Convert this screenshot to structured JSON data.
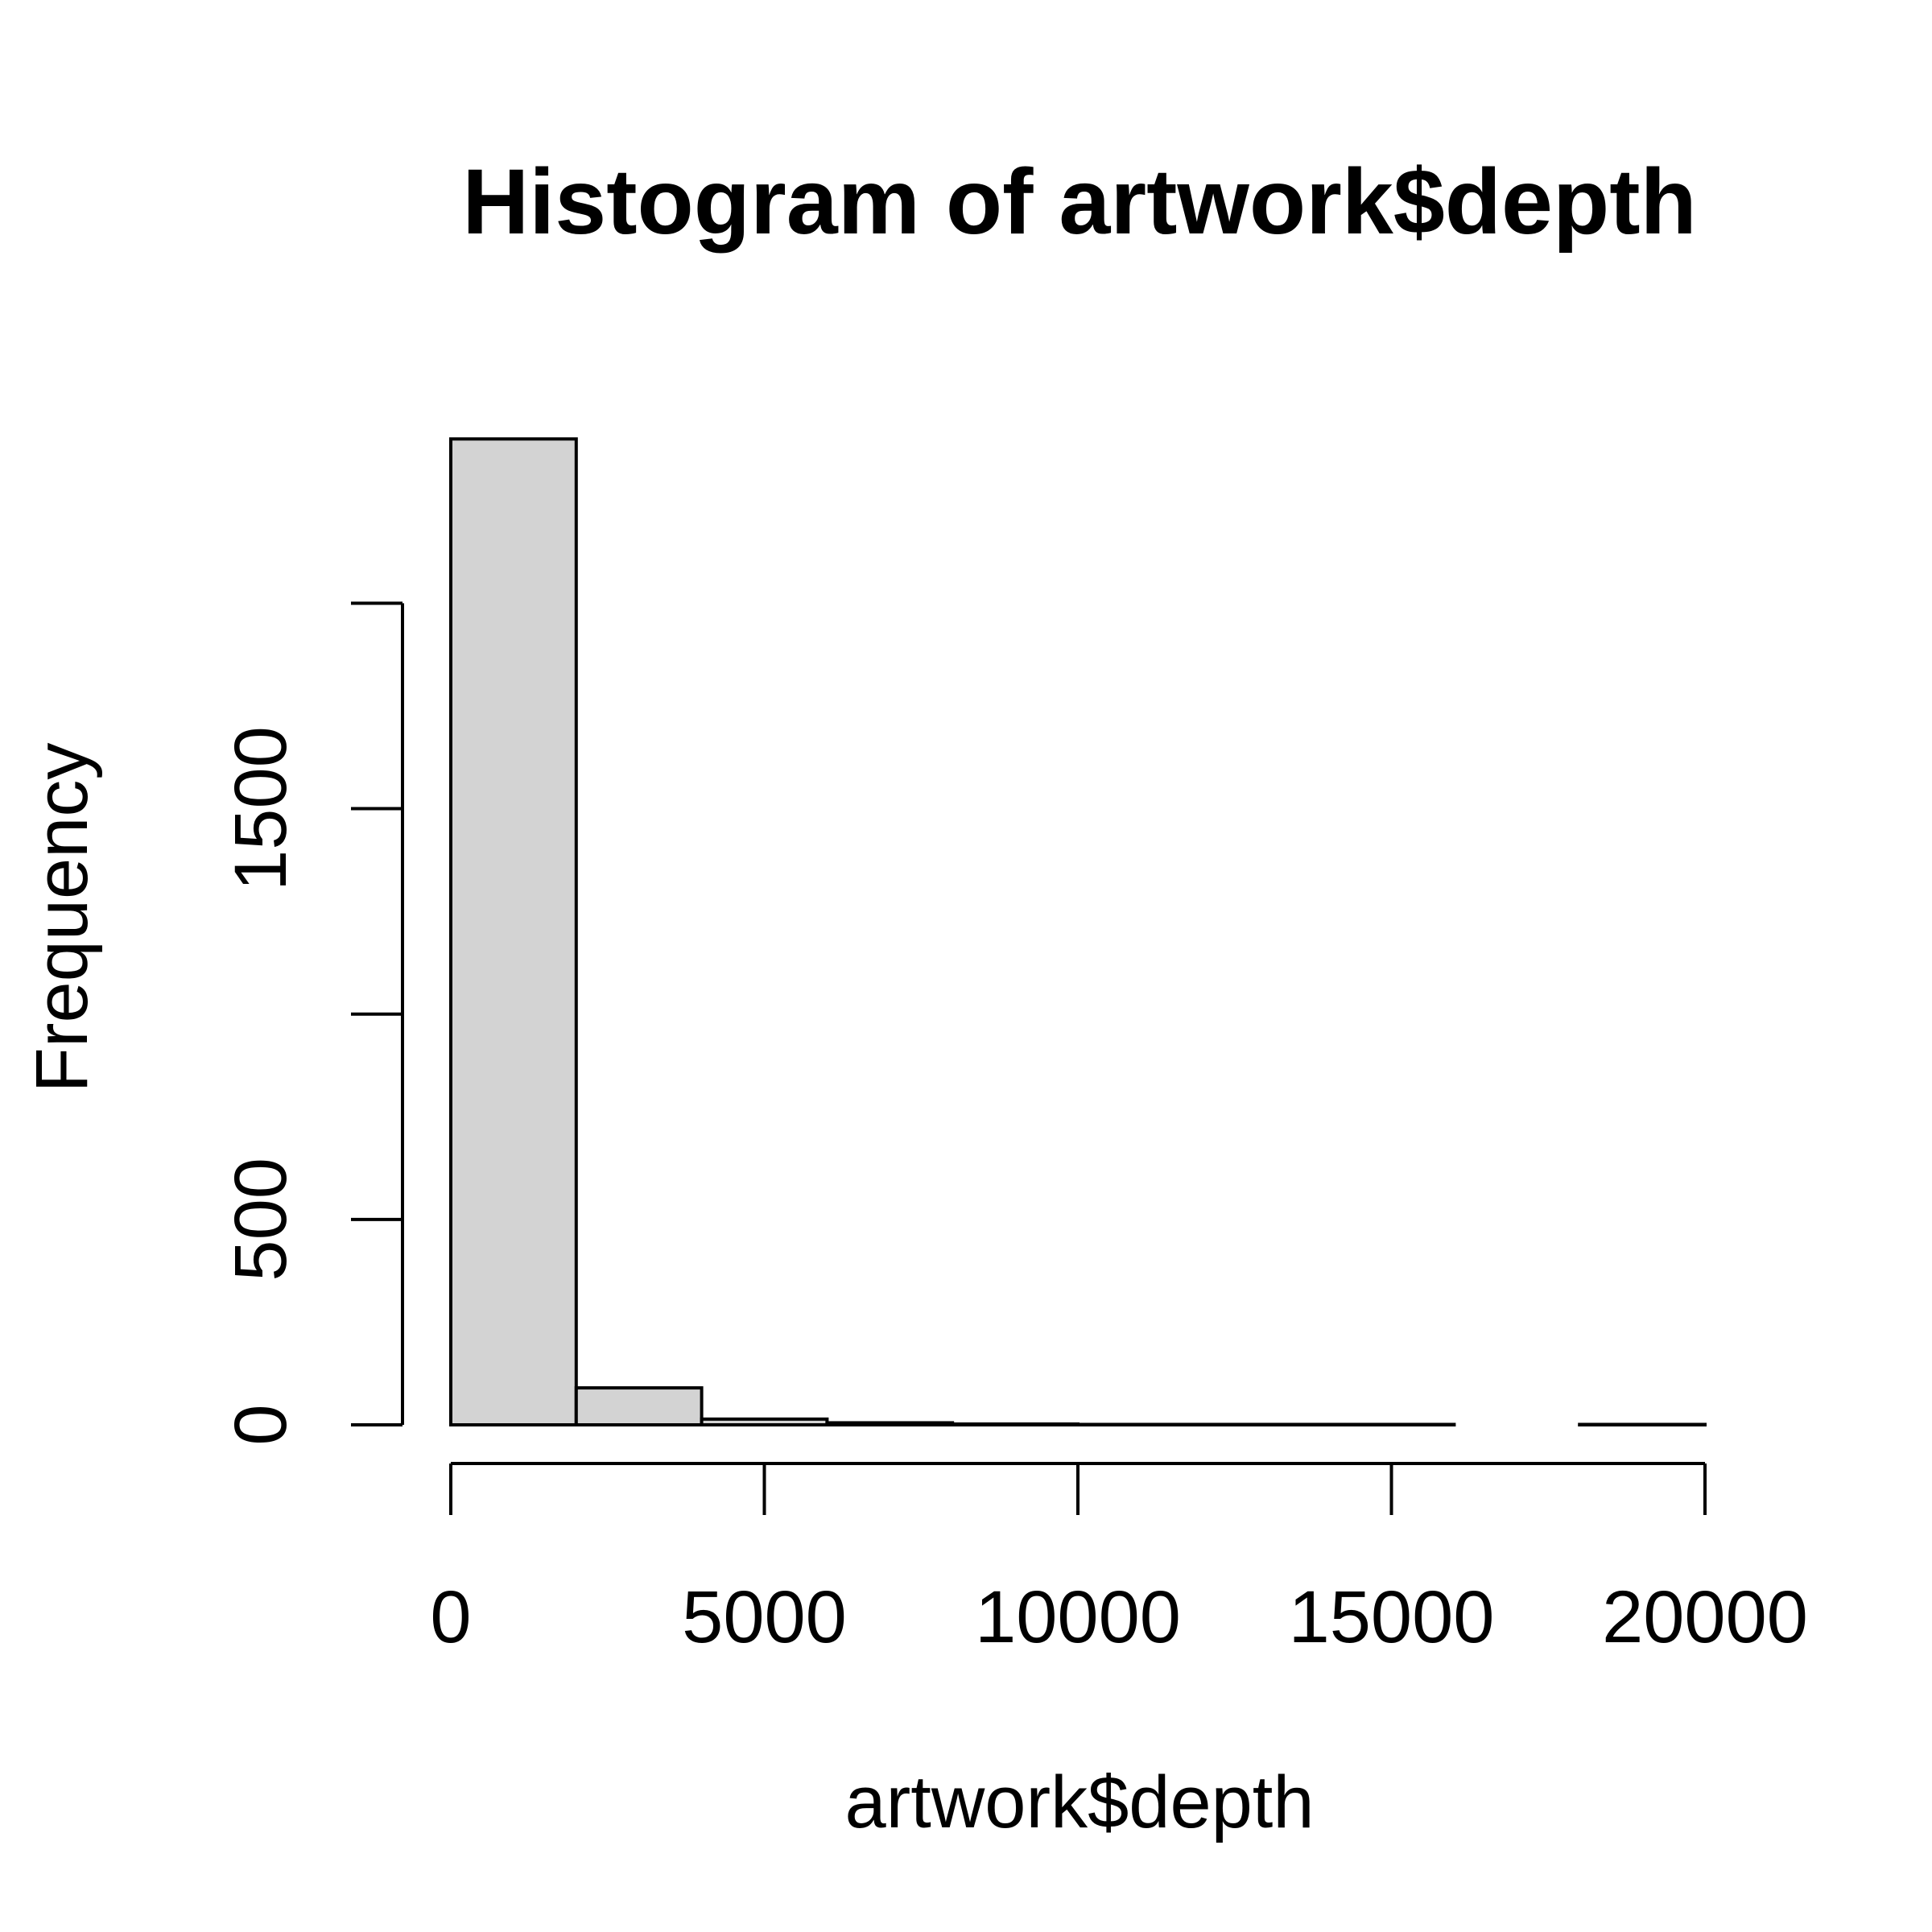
{
  "chart_data": {
    "type": "bar",
    "title": "Histogram of artwork$depth",
    "xlabel": "artwork$depth",
    "ylabel": "Frequency",
    "bins": [
      {
        "start": 0,
        "end": 2000,
        "count": 2400
      },
      {
        "start": 2000,
        "end": 4000,
        "count": 90
      },
      {
        "start": 4000,
        "end": 6000,
        "count": 14
      },
      {
        "start": 6000,
        "end": 8000,
        "count": 5
      },
      {
        "start": 8000,
        "end": 10000,
        "count": 2
      },
      {
        "start": 10000,
        "end": 12000,
        "count": 1
      },
      {
        "start": 12000,
        "end": 14000,
        "count": 1
      },
      {
        "start": 14000,
        "end": 16000,
        "count": 1
      },
      {
        "start": 16000,
        "end": 18000,
        "count": 0
      },
      {
        "start": 18000,
        "end": 20000,
        "count": 1
      }
    ],
    "xlim": [
      0,
      20000
    ],
    "ylim": [
      0,
      2400
    ],
    "x_ticks": [
      0,
      5000,
      10000,
      15000,
      20000
    ],
    "x_tick_labels": [
      "0",
      "5000",
      "10000",
      "15000",
      "20000"
    ],
    "y_ticks": [
      0,
      500,
      1000,
      1500,
      2000
    ],
    "y_tick_labels": [
      "0",
      "500",
      "",
      "1500",
      ""
    ],
    "grid": false,
    "colors": {
      "bar_fill": "#d3d3d3",
      "bar_stroke": "#000000",
      "background": "#ffffff"
    }
  }
}
